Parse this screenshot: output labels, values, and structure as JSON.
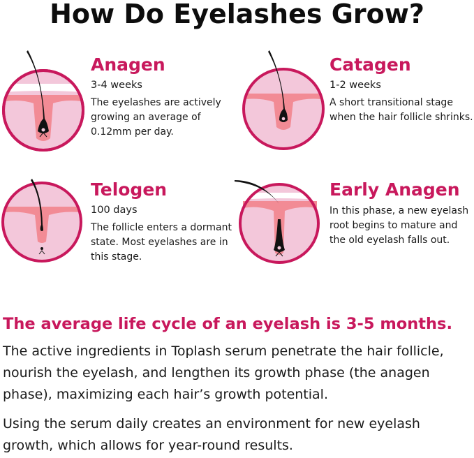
{
  "title": "How Do Eyelashes Grow?",
  "colors": {
    "accent": "#c8185c",
    "circle_fill": "#f3c7da",
    "follicle": "#f28b95",
    "hair": "#111111"
  },
  "stages": [
    {
      "name": "Anagen",
      "duration": "3-4 weeks",
      "description": "The eyelashes are actively growing an average of 0.12mm per day."
    },
    {
      "name": "Catagen",
      "duration": "1-2 weeks",
      "description": "A short transitional stage when the hair follicle shrinks."
    },
    {
      "name": "Telogen",
      "duration": "100 days",
      "description": "The follicle enters a dormant state. Most eyelashes are in this stage."
    },
    {
      "name": "Early Anagen",
      "description": "In this phase, a new eyelash root begins to mature and the old eyelash falls out."
    }
  ],
  "summary": {
    "heading": "The average life cycle of an eyelash is 3-5 months.",
    "paragraphs": [
      "The active ingredients in Toplash serum penetrate the hair follicle, nourish the eyelash, and lengthen its growth phase (the anagen phase), maximizing each hair’s growth potential.",
      "Using the serum daily creates an environment for new eyelash growth, which allows for year-round results."
    ]
  }
}
